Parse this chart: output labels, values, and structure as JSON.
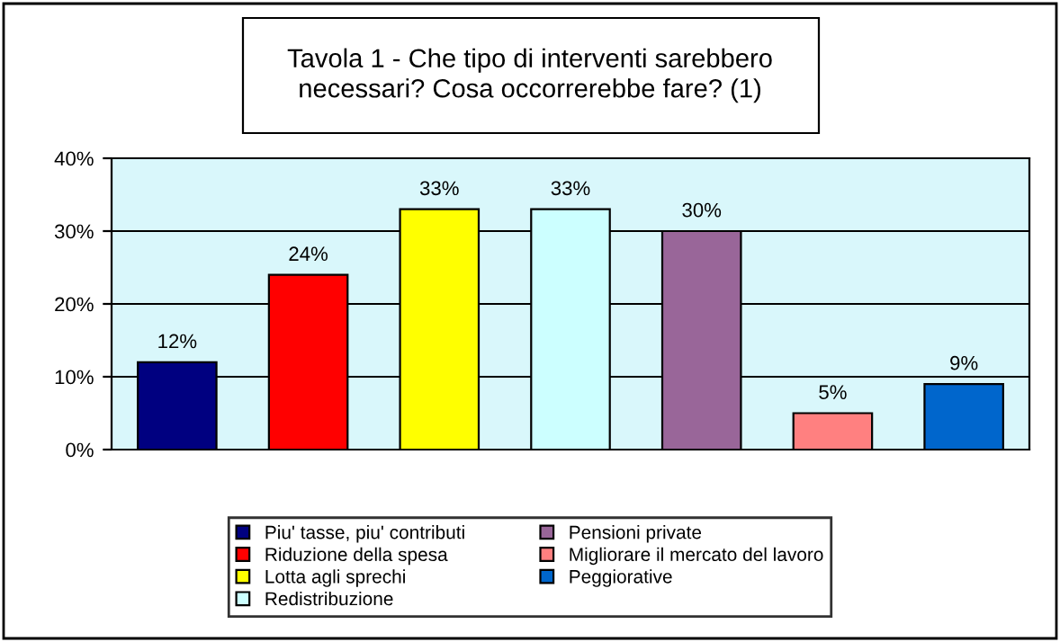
{
  "chart_data": {
    "type": "bar",
    "title": "Tavola 1 - Che tipo di interventi sarebbero\nnecessari? Cosa occorrerebbe fare? (1)",
    "categories": [
      null,
      null,
      null,
      null,
      null,
      null,
      null
    ],
    "series": [
      {
        "name": "Piu' tasse, piu' contributi",
        "color": "#000080",
        "values": [
          12,
          null,
          null,
          null,
          null,
          null,
          null
        ],
        "value_labels": [
          "12%",
          null,
          null,
          null,
          null,
          null,
          null
        ]
      },
      {
        "name": "Riduzione della spesa",
        "color": "#ff0000",
        "values": [
          null,
          24,
          null,
          null,
          null,
          null,
          null
        ],
        "value_labels": [
          null,
          "24%",
          null,
          null,
          null,
          null,
          null
        ]
      },
      {
        "name": "Lotta agli sprechi",
        "color": "#ffff00",
        "values": [
          null,
          null,
          33,
          null,
          null,
          null,
          null
        ],
        "value_labels": [
          null,
          null,
          "33%",
          null,
          null,
          null,
          null
        ]
      },
      {
        "name": "Redistribuzione",
        "color": "#ccffff",
        "values": [
          null,
          null,
          null,
          33,
          null,
          null,
          null
        ],
        "value_labels": [
          null,
          null,
          null,
          "33%",
          null,
          null,
          null
        ]
      },
      {
        "name": "Pensioni private",
        "color": "#996699",
        "values": [
          null,
          null,
          null,
          null,
          30,
          null,
          null
        ],
        "value_labels": [
          null,
          null,
          null,
          null,
          "30%",
          null,
          null
        ]
      },
      {
        "name": "Migliorare il mercato del lavoro",
        "color": "#ff8080",
        "values": [
          null,
          null,
          null,
          null,
          null,
          5,
          null
        ],
        "value_labels": [
          null,
          null,
          null,
          null,
          null,
          "5%",
          null
        ]
      },
      {
        "name": "Peggiorative",
        "color": "#0066cc",
        "values": [
          null,
          null,
          null,
          null,
          null,
          null,
          9
        ],
        "value_labels": [
          null,
          null,
          null,
          null,
          null,
          null,
          "9%"
        ]
      }
    ],
    "ylim": [
      0,
      40
    ],
    "yticks": [
      {
        "value": 0,
        "label": "0%"
      },
      {
        "value": 10,
        "label": "10%"
      },
      {
        "value": 20,
        "label": "20%"
      },
      {
        "value": 30,
        "label": "30%"
      },
      {
        "value": 40,
        "label": "40%"
      }
    ],
    "grid": "y",
    "legend": "bottom"
  }
}
